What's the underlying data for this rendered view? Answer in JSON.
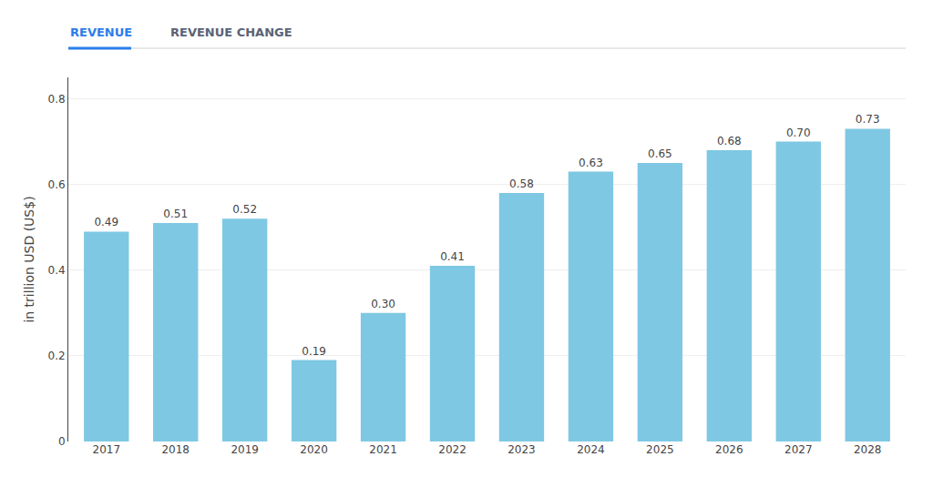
{
  "chart_data": {
    "type": "bar",
    "categories": [
      "2017",
      "2018",
      "2019",
      "2020",
      "2021",
      "2022",
      "2023",
      "2024",
      "2025",
      "2026",
      "2027",
      "2028"
    ],
    "values": [
      0.49,
      0.51,
      0.52,
      0.19,
      0.3,
      0.41,
      0.58,
      0.63,
      0.65,
      0.68,
      0.7,
      0.73
    ],
    "value_labels": [
      "0.49",
      "0.51",
      "0.52",
      "0.19",
      "0.30",
      "0.41",
      "0.58",
      "0.63",
      "0.65",
      "0.68",
      "0.70",
      "0.73"
    ],
    "data_labels": true,
    "color": "#7ec8e3",
    "y_label": "in trillion USD (US$)",
    "ylim": [
      0,
      0.85
    ],
    "yticks": [
      0,
      0.2,
      0.4,
      0.6,
      0.8
    ],
    "grid": true,
    "annotations": [
      {
        "text": "REVENUE",
        "color": "#2b7de9"
      },
      {
        "text": "REVENUE CHANGE",
        "color": "#5a6375"
      }
    ]
  }
}
